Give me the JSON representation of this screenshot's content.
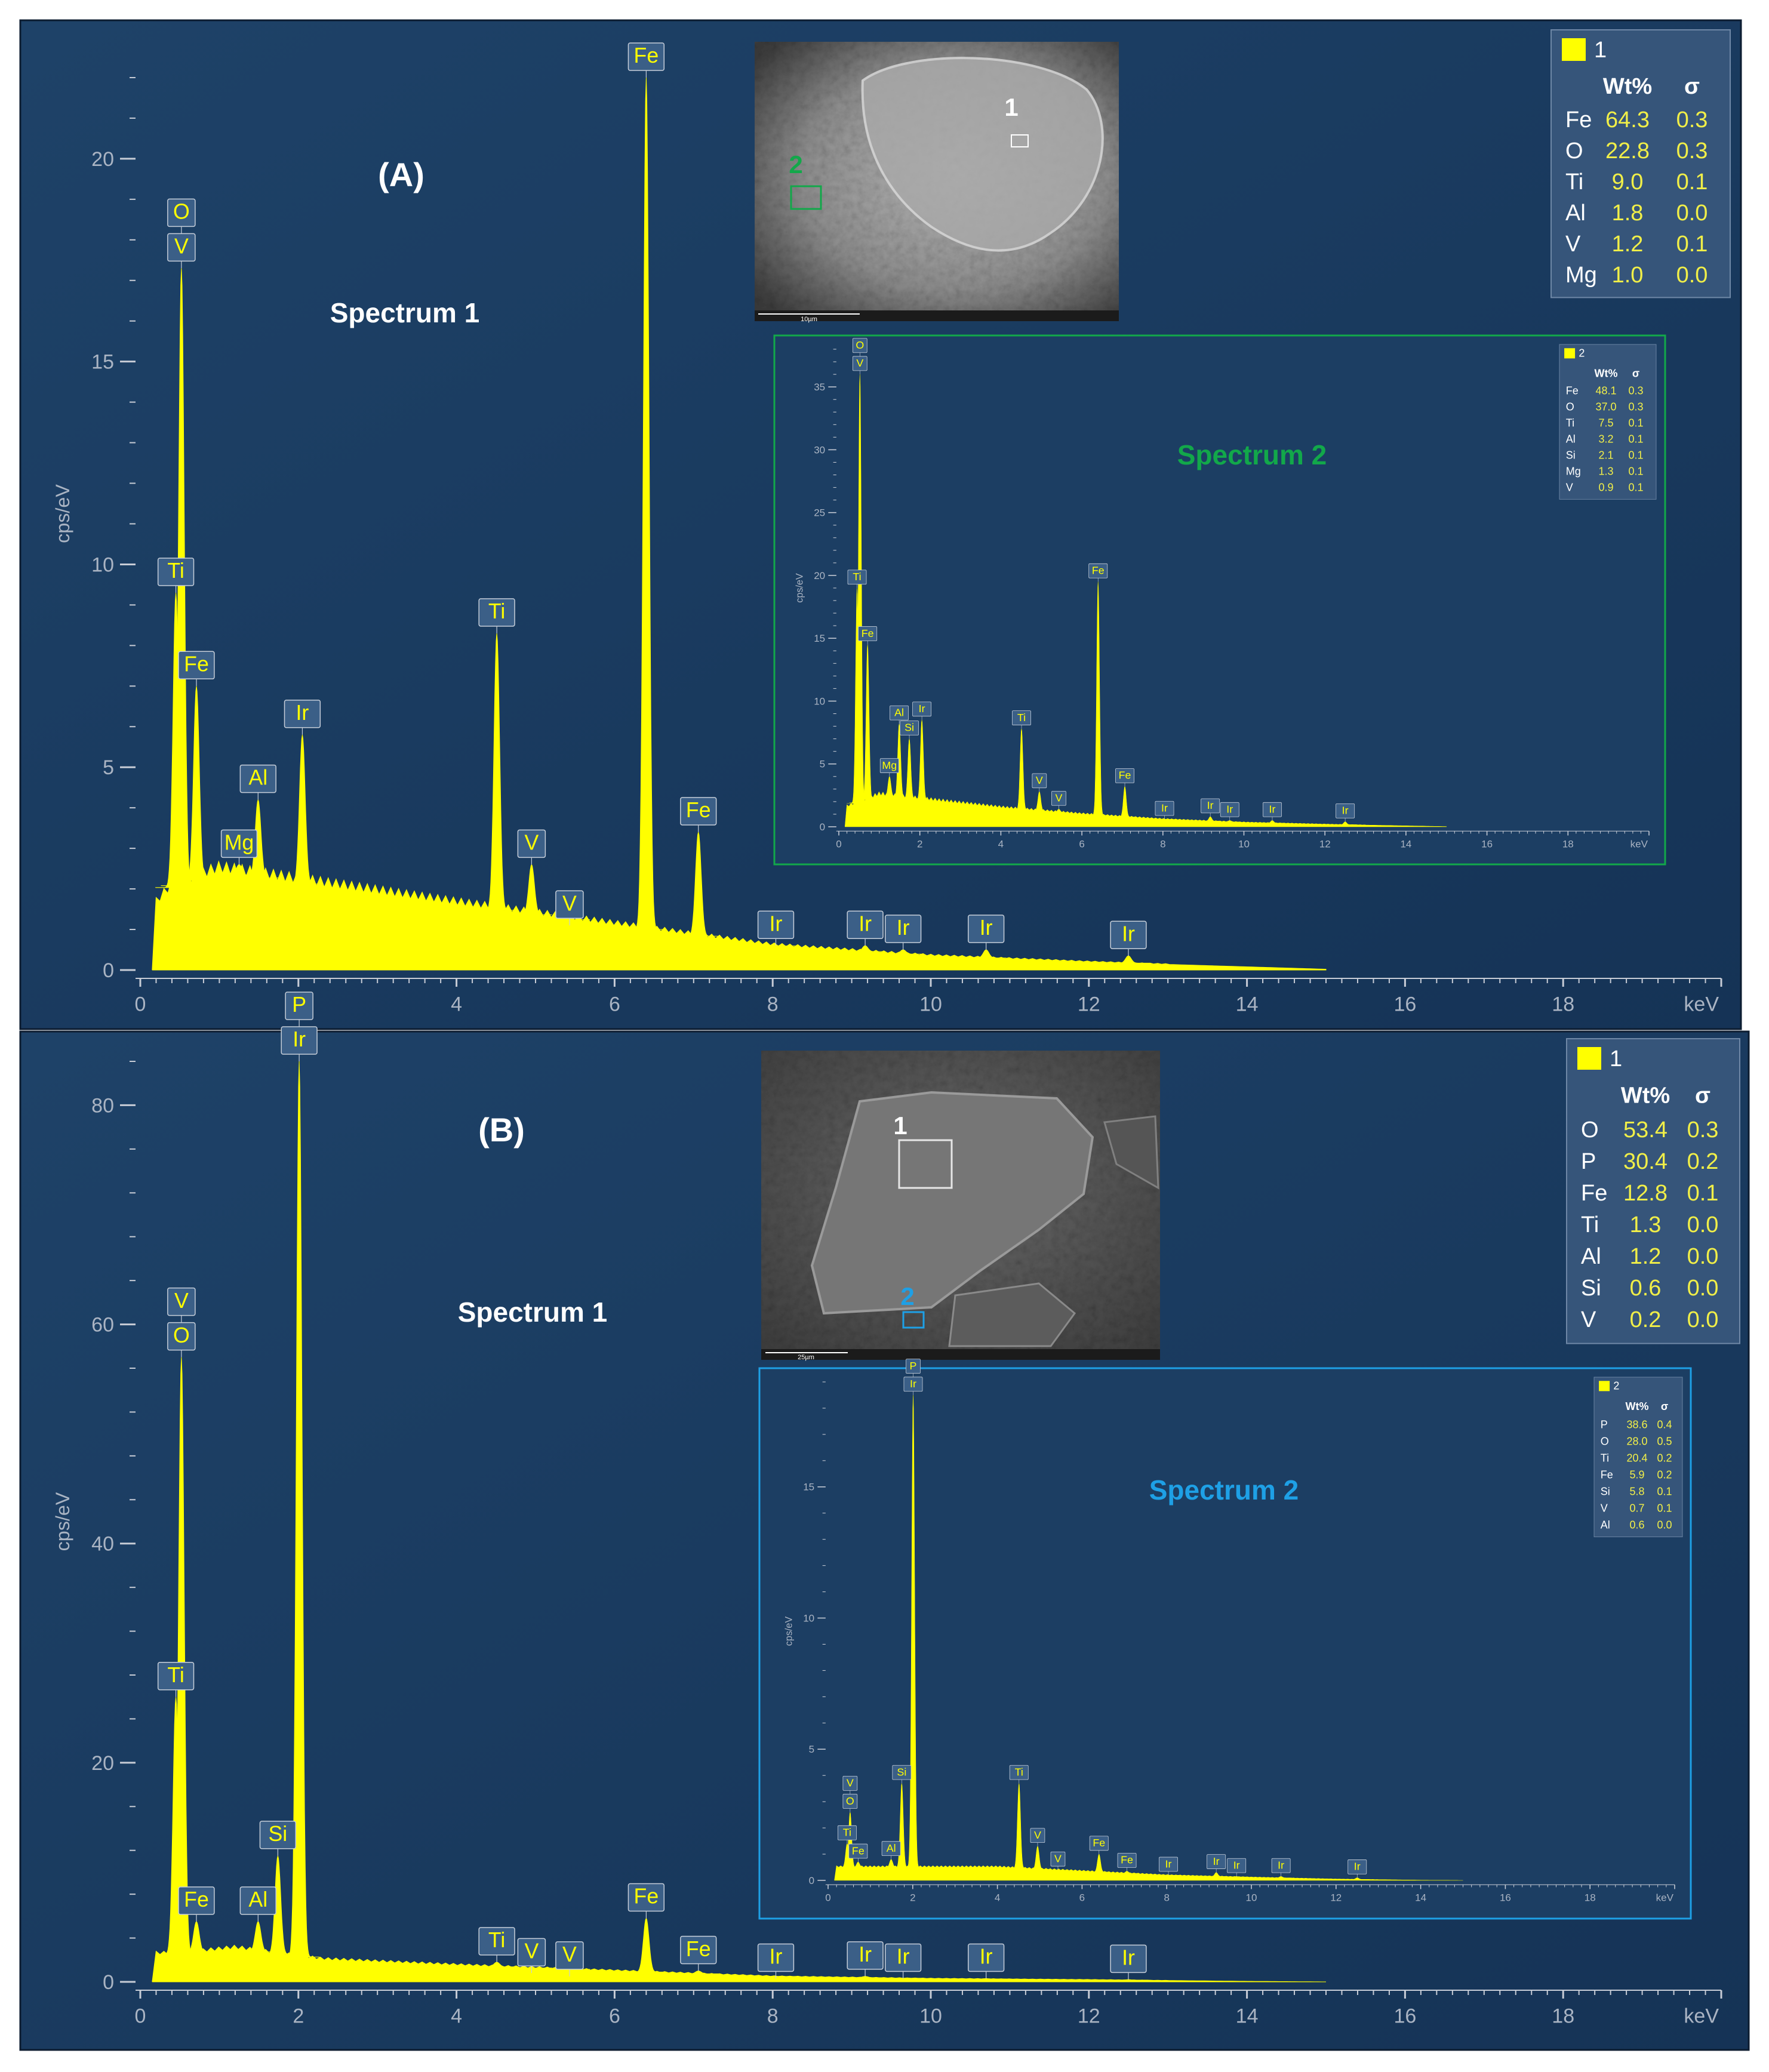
{
  "panels": [
    {
      "id": "A",
      "label": "(A)",
      "spectrum1_title": "Spectrum 1",
      "spectrum2_title": "Spectrum 2",
      "accent": "#12a84a",
      "table1": {
        "header_id": "1",
        "col_wt": "Wt%",
        "col_sigma": "σ",
        "rows": [
          [
            "Fe",
            "64.3",
            "0.3"
          ],
          [
            "O",
            "22.8",
            "0.3"
          ],
          [
            "Ti",
            "9.0",
            "0.1"
          ],
          [
            "Al",
            "1.8",
            "0.0"
          ],
          [
            "V",
            "1.2",
            "0.1"
          ],
          [
            "Mg",
            "1.0",
            "0.0"
          ]
        ]
      },
      "table2": {
        "header_id": "2",
        "col_wt": "Wt%",
        "col_sigma": "σ",
        "rows": [
          [
            "Fe",
            "48.1",
            "0.3"
          ],
          [
            "O",
            "37.0",
            "0.3"
          ],
          [
            "Ti",
            "7.5",
            "0.1"
          ],
          [
            "Al",
            "3.2",
            "0.1"
          ],
          [
            "Si",
            "2.1",
            "0.1"
          ],
          [
            "Mg",
            "1.3",
            "0.1"
          ],
          [
            "V",
            "0.9",
            "0.1"
          ]
        ]
      },
      "micrograph": {
        "marker1": "1",
        "marker2": "2",
        "scale_label": "10µm"
      }
    },
    {
      "id": "B",
      "label": "(B)",
      "spectrum1_title": "Spectrum 1",
      "spectrum2_title": "Spectrum 2",
      "accent": "#1ea0e6",
      "table1": {
        "header_id": "1",
        "col_wt": "Wt%",
        "col_sigma": "σ",
        "rows": [
          [
            "O",
            "53.4",
            "0.3"
          ],
          [
            "P",
            "30.4",
            "0.2"
          ],
          [
            "Fe",
            "12.8",
            "0.1"
          ],
          [
            "Ti",
            "1.3",
            "0.0"
          ],
          [
            "Al",
            "1.2",
            "0.0"
          ],
          [
            "Si",
            "0.6",
            "0.0"
          ],
          [
            "V",
            "0.2",
            "0.0"
          ]
        ]
      },
      "table2": {
        "header_id": "2",
        "col_wt": "Wt%",
        "col_sigma": "σ",
        "rows": [
          [
            "P",
            "38.6",
            "0.4"
          ],
          [
            "O",
            "28.0",
            "0.5"
          ],
          [
            "Ti",
            "20.4",
            "0.2"
          ],
          [
            "Fe",
            "5.9",
            "0.2"
          ],
          [
            "Si",
            "5.8",
            "0.1"
          ],
          [
            "V",
            "0.7",
            "0.1"
          ],
          [
            "Al",
            "0.6",
            "0.0"
          ]
        ]
      },
      "micrograph": {
        "marker1": "1",
        "marker2": "2",
        "scale_label": "25µm"
      }
    }
  ],
  "chart_data": [
    {
      "type": "line",
      "name": "A-main",
      "xlabel": "keV",
      "ylabel": "cps/eV",
      "xlim": [
        0,
        20
      ],
      "ylim": [
        0,
        22.5
      ],
      "xticks": [
        0,
        2,
        4,
        6,
        8,
        10,
        12,
        14,
        16,
        18
      ],
      "yticks": [
        0,
        5,
        10,
        15,
        20
      ],
      "background_level": [
        [
          0.15,
          1.5
        ],
        [
          0.4,
          2.0
        ],
        [
          1.0,
          2.4
        ],
        [
          2.5,
          2.0
        ],
        [
          4.0,
          1.6
        ],
        [
          6.0,
          1.1
        ],
        [
          8.0,
          0.6
        ],
        [
          10.0,
          0.35
        ],
        [
          12.0,
          0.2
        ],
        [
          14.0,
          0.08
        ],
        [
          15.0,
          0.02
        ],
        [
          20.0,
          0
        ]
      ],
      "peaks": [
        {
          "x": 0.52,
          "y": 17.3,
          "labels": [
            "O",
            "V"
          ]
        },
        {
          "x": 0.45,
          "y": 9.3,
          "labels": [
            "Ti"
          ]
        },
        {
          "x": 0.71,
          "y": 7.0,
          "labels": [
            "Fe"
          ]
        },
        {
          "x": 1.25,
          "y": 2.6,
          "labels": [
            "Mg"
          ]
        },
        {
          "x": 1.49,
          "y": 4.2,
          "labels": [
            "Al"
          ]
        },
        {
          "x": 2.05,
          "y": 5.8,
          "labels": [
            "Ir"
          ]
        },
        {
          "x": 4.51,
          "y": 8.3,
          "labels": [
            "Ti"
          ]
        },
        {
          "x": 4.95,
          "y": 2.6,
          "labels": [
            "V"
          ]
        },
        {
          "x": 5.43,
          "y": 1.1,
          "labels": [
            "V"
          ]
        },
        {
          "x": 6.4,
          "y": 22.0,
          "labels": [
            "Fe"
          ]
        },
        {
          "x": 7.06,
          "y": 3.4,
          "labels": [
            "Fe"
          ]
        },
        {
          "x": 8.04,
          "y": 0.6,
          "labels": [
            "Ir"
          ]
        },
        {
          "x": 9.17,
          "y": 0.6,
          "labels": [
            "Ir"
          ]
        },
        {
          "x": 9.65,
          "y": 0.5,
          "labels": [
            "Ir"
          ]
        },
        {
          "x": 10.7,
          "y": 0.5,
          "labels": [
            "Ir"
          ]
        },
        {
          "x": 12.5,
          "y": 0.35,
          "labels": [
            "Ir"
          ]
        }
      ]
    },
    {
      "type": "line",
      "name": "A-inset",
      "xlabel": "keV",
      "ylabel": "cps/eV",
      "xlim": [
        0,
        20
      ],
      "ylim": [
        0,
        38
      ],
      "xticks": [
        0,
        2,
        4,
        6,
        8,
        10,
        12,
        14,
        16,
        18
      ],
      "yticks": [
        0,
        5,
        10,
        15,
        20,
        25,
        30,
        35
      ],
      "background_level": [
        [
          0.15,
          1.5
        ],
        [
          1.0,
          2.5
        ],
        [
          2.5,
          2.0
        ],
        [
          4.0,
          1.5
        ],
        [
          6.0,
          1.0
        ],
        [
          8.0,
          0.6
        ],
        [
          10.0,
          0.35
        ],
        [
          12.0,
          0.2
        ],
        [
          14.0,
          0.08
        ],
        [
          15.0,
          0.02
        ],
        [
          20.0,
          0
        ]
      ],
      "peaks": [
        {
          "x": 0.52,
          "y": 36.0,
          "labels": [
            "O",
            "V"
          ]
        },
        {
          "x": 0.45,
          "y": 19.0,
          "labels": [
            "Ti"
          ]
        },
        {
          "x": 0.71,
          "y": 14.5,
          "labels": [
            "Fe"
          ]
        },
        {
          "x": 1.25,
          "y": 4.0,
          "labels": [
            "Mg"
          ]
        },
        {
          "x": 1.49,
          "y": 8.2,
          "labels": [
            "Al"
          ]
        },
        {
          "x": 1.74,
          "y": 7.0,
          "labels": [
            "Si"
          ]
        },
        {
          "x": 2.05,
          "y": 8.5,
          "labels": [
            "Ir"
          ]
        },
        {
          "x": 4.51,
          "y": 7.8,
          "labels": [
            "Ti"
          ]
        },
        {
          "x": 4.95,
          "y": 2.8,
          "labels": [
            "V"
          ]
        },
        {
          "x": 5.43,
          "y": 1.4,
          "labels": [
            "V"
          ]
        },
        {
          "x": 6.4,
          "y": 19.5,
          "labels": [
            "Fe"
          ]
        },
        {
          "x": 7.06,
          "y": 3.2,
          "labels": [
            "Fe"
          ]
        },
        {
          "x": 8.04,
          "y": 0.6,
          "labels": [
            "Ir"
          ]
        },
        {
          "x": 9.17,
          "y": 0.8,
          "labels": [
            "Ir"
          ]
        },
        {
          "x": 9.65,
          "y": 0.5,
          "labels": [
            "Ir"
          ]
        },
        {
          "x": 10.7,
          "y": 0.5,
          "labels": [
            "Ir"
          ]
        },
        {
          "x": 12.5,
          "y": 0.4,
          "labels": [
            "Ir"
          ]
        }
      ]
    },
    {
      "type": "line",
      "name": "B-main",
      "xlabel": "keV",
      "ylabel": "cps/eV",
      "xlim": [
        0,
        20
      ],
      "ylim": [
        0,
        84
      ],
      "xticks": [
        0,
        2,
        4,
        6,
        8,
        10,
        12,
        14,
        16,
        18
      ],
      "yticks": [
        0,
        20,
        40,
        60,
        80
      ],
      "background_level": [
        [
          0.15,
          2.5
        ],
        [
          0.5,
          2.5
        ],
        [
          1.2,
          3.0
        ],
        [
          2.3,
          2.0
        ],
        [
          4.0,
          1.5
        ],
        [
          6.0,
          1.0
        ],
        [
          8.0,
          0.5
        ],
        [
          10.0,
          0.3
        ],
        [
          12.0,
          0.2
        ],
        [
          14.0,
          0.05
        ],
        [
          15.0,
          0
        ],
        [
          20.0,
          0
        ]
      ],
      "peaks": [
        {
          "x": 0.52,
          "y": 57.0,
          "labels": [
            "V",
            "O"
          ]
        },
        {
          "x": 0.45,
          "y": 26.0,
          "labels": [
            "Ti"
          ]
        },
        {
          "x": 0.71,
          "y": 5.5,
          "labels": [
            "Fe"
          ]
        },
        {
          "x": 1.49,
          "y": 5.5,
          "labels": [
            "Al"
          ]
        },
        {
          "x": 1.74,
          "y": 11.5,
          "labels": [
            "Si"
          ]
        },
        {
          "x": 2.01,
          "y": 84.0,
          "labels": [
            "P",
            "Ir"
          ]
        },
        {
          "x": 4.51,
          "y": 1.8,
          "labels": [
            "Ti"
          ]
        },
        {
          "x": 4.95,
          "y": 0.8,
          "labels": [
            "V"
          ]
        },
        {
          "x": 5.43,
          "y": 0.5,
          "labels": [
            "V"
          ]
        },
        {
          "x": 6.4,
          "y": 5.8,
          "labels": [
            "Fe"
          ]
        },
        {
          "x": 7.06,
          "y": 1.0,
          "labels": [
            "Fe"
          ]
        },
        {
          "x": 8.04,
          "y": 0.3,
          "labels": [
            "Ir"
          ]
        },
        {
          "x": 9.17,
          "y": 0.5,
          "labels": [
            "Ir"
          ]
        },
        {
          "x": 9.65,
          "y": 0.3,
          "labels": [
            "Ir"
          ]
        },
        {
          "x": 10.7,
          "y": 0.3,
          "labels": [
            "Ir"
          ]
        },
        {
          "x": 12.5,
          "y": 0.2,
          "labels": [
            "Ir"
          ]
        }
      ]
    },
    {
      "type": "line",
      "name": "B-inset",
      "xlabel": "keV",
      "ylabel": "cps/eV",
      "xlim": [
        0,
        20
      ],
      "ylim": [
        0,
        19
      ],
      "xticks": [
        0,
        2,
        4,
        6,
        8,
        10,
        12,
        14,
        16,
        18
      ],
      "yticks": [
        0,
        5,
        10,
        15
      ],
      "background_level": [
        [
          0.15,
          0.5
        ],
        [
          1.0,
          0.5
        ],
        [
          2.3,
          0.5
        ],
        [
          4.0,
          0.5
        ],
        [
          6.0,
          0.35
        ],
        [
          8.0,
          0.2
        ],
        [
          10.0,
          0.12
        ],
        [
          12.0,
          0.05
        ],
        [
          14.0,
          0.01
        ],
        [
          15.0,
          0
        ],
        [
          20.0,
          0
        ]
      ],
      "peaks": [
        {
          "x": 0.52,
          "y": 2.6,
          "labels": [
            "V",
            "O"
          ]
        },
        {
          "x": 0.45,
          "y": 1.4,
          "labels": [
            "Ti"
          ]
        },
        {
          "x": 0.71,
          "y": 0.7,
          "labels": [
            "Fe"
          ]
        },
        {
          "x": 1.49,
          "y": 0.8,
          "labels": [
            "Al"
          ]
        },
        {
          "x": 1.74,
          "y": 3.7,
          "labels": [
            "Si"
          ]
        },
        {
          "x": 2.01,
          "y": 18.5,
          "labels": [
            "P",
            "Ir"
          ]
        },
        {
          "x": 4.51,
          "y": 3.7,
          "labels": [
            "Ti"
          ]
        },
        {
          "x": 4.95,
          "y": 1.3,
          "labels": [
            "V"
          ]
        },
        {
          "x": 5.43,
          "y": 0.4,
          "labels": [
            "V"
          ]
        },
        {
          "x": 6.4,
          "y": 1.0,
          "labels": [
            "Fe"
          ]
        },
        {
          "x": 7.06,
          "y": 0.35,
          "labels": [
            "Fe"
          ]
        },
        {
          "x": 8.04,
          "y": 0.2,
          "labels": [
            "Ir"
          ]
        },
        {
          "x": 9.17,
          "y": 0.3,
          "labels": [
            "Ir"
          ]
        },
        {
          "x": 9.65,
          "y": 0.15,
          "labels": [
            "Ir"
          ]
        },
        {
          "x": 10.7,
          "y": 0.15,
          "labels": [
            "Ir"
          ]
        },
        {
          "x": 12.5,
          "y": 0.1,
          "labels": [
            "Ir"
          ]
        }
      ]
    }
  ],
  "colors": {
    "panel_bg_top": "#1e4268",
    "panel_bg_bottom": "#153356",
    "spectrum": "#ffff00",
    "axis_text": "#aab4c3",
    "tick": "#c7ccd6",
    "table_bg": "#36557a",
    "table_value": "#f1ef48"
  }
}
